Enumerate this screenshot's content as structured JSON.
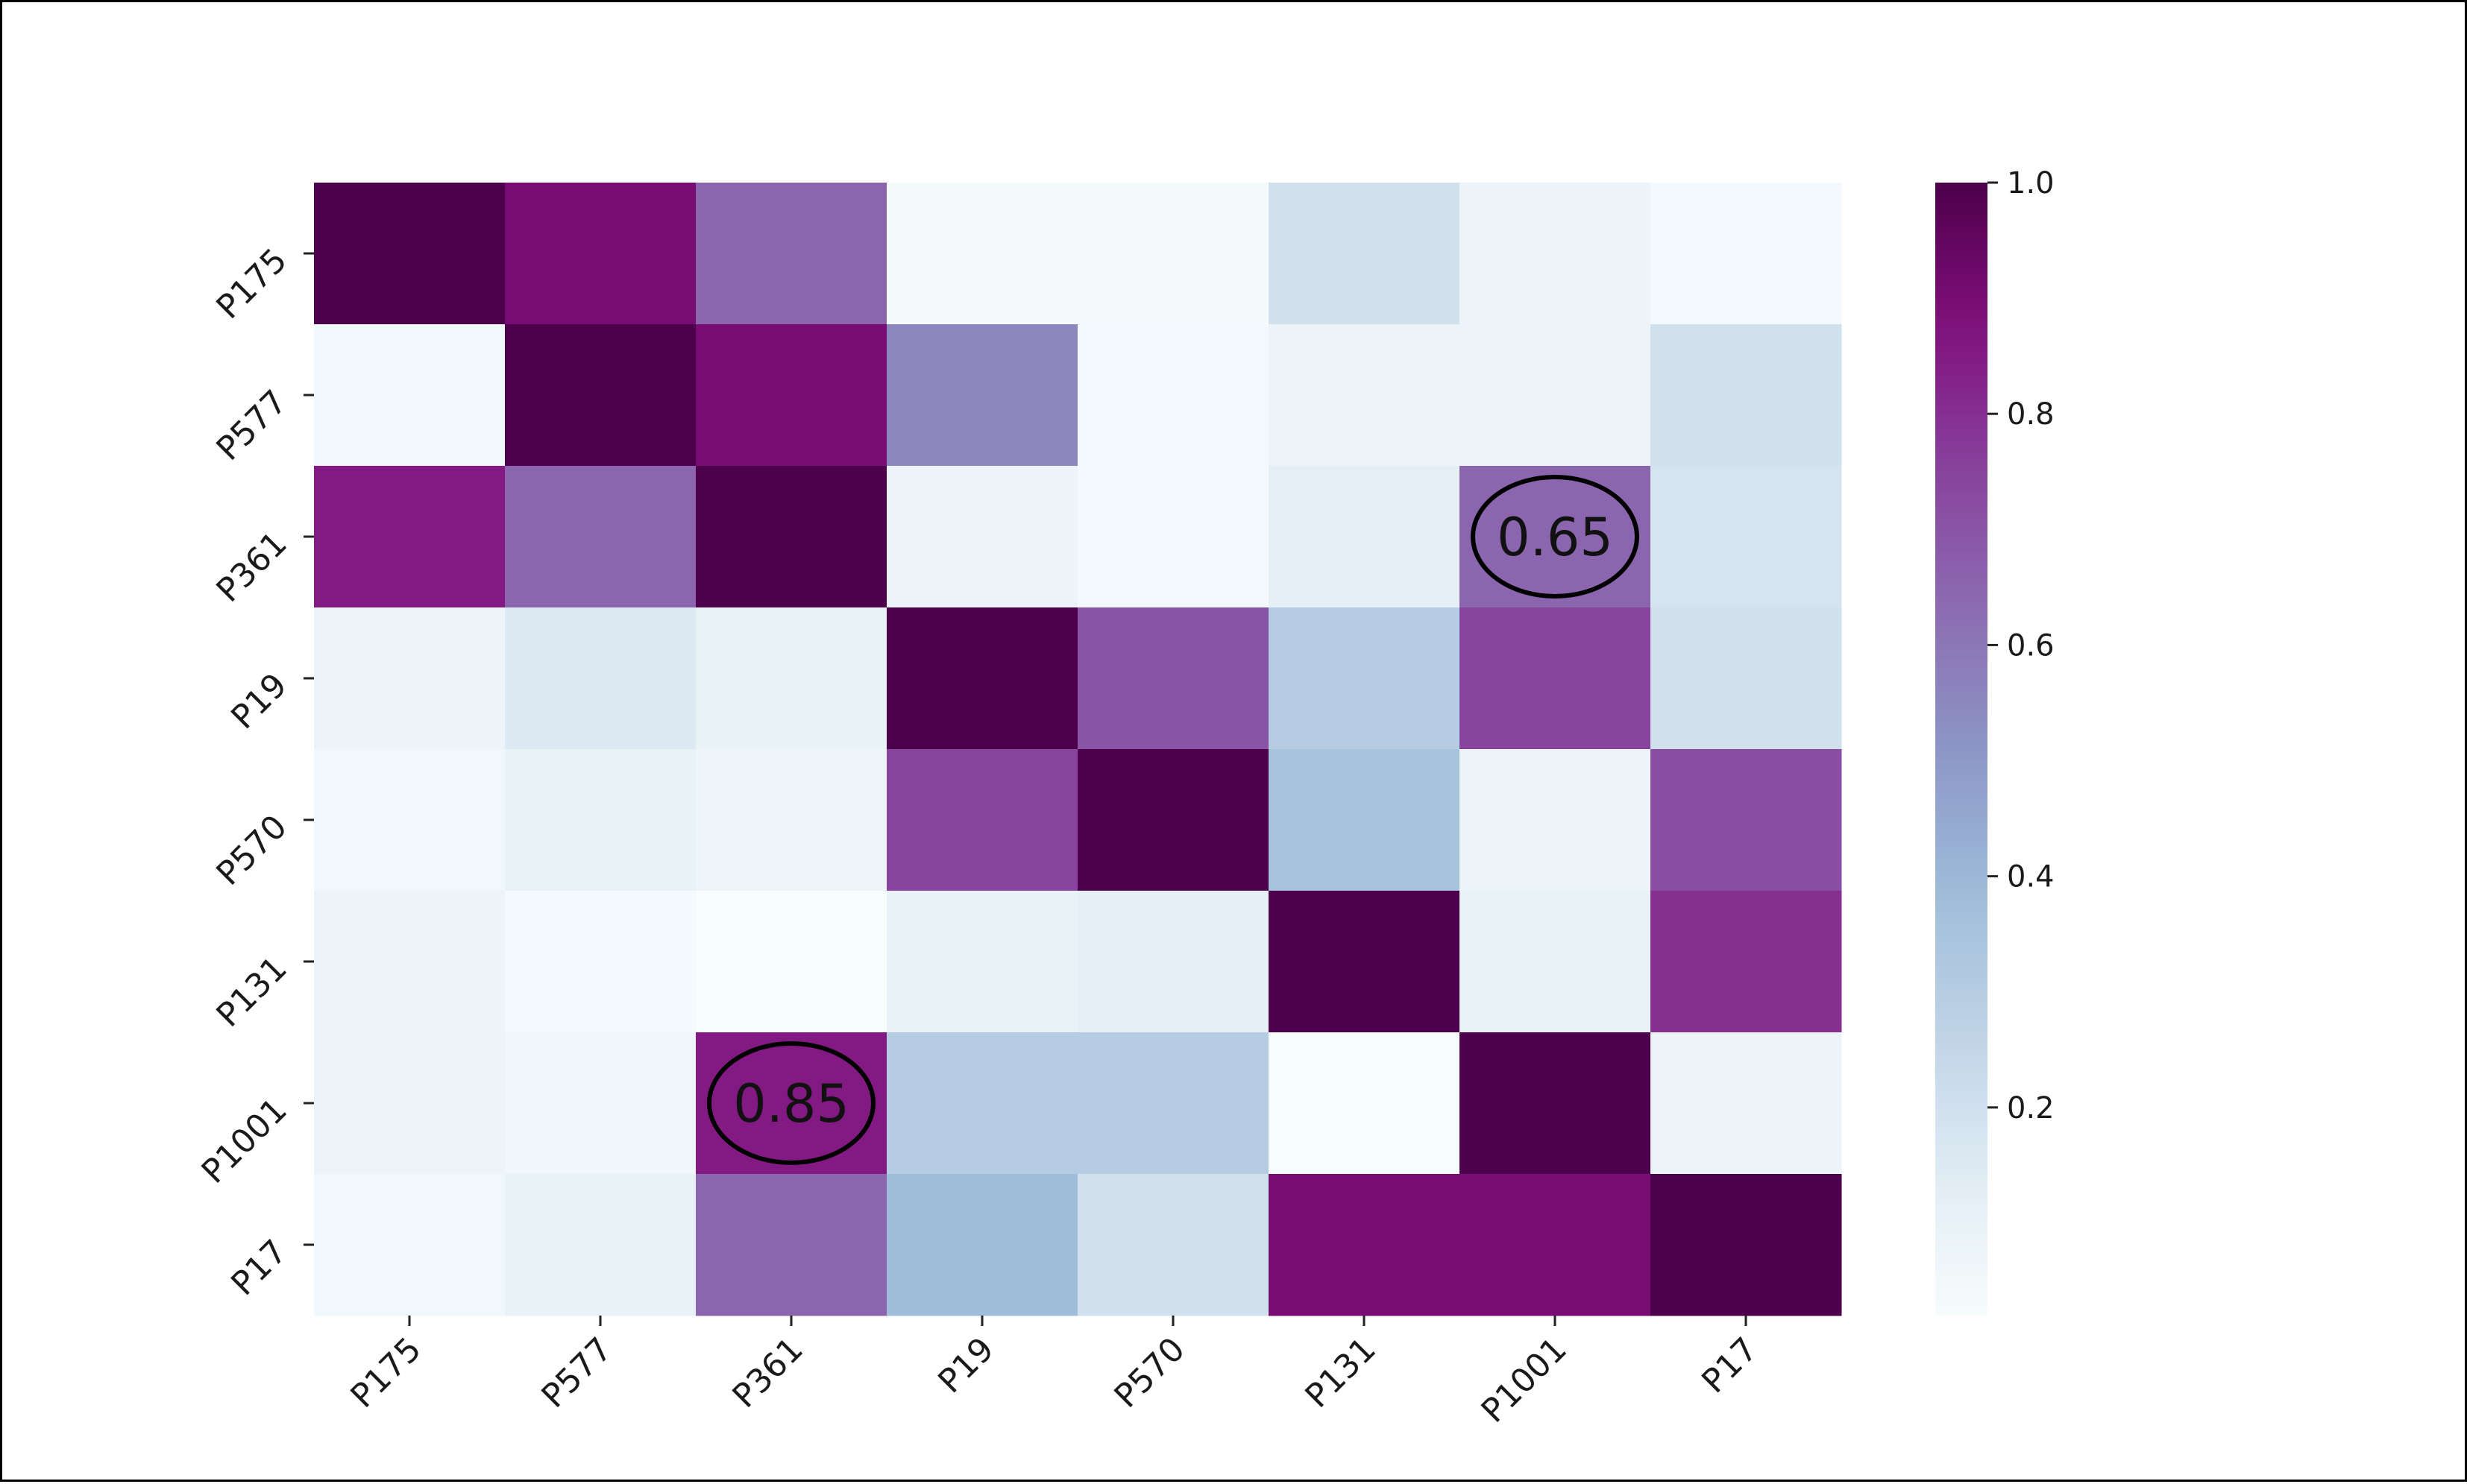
{
  "chart_data": {
    "type": "heatmap",
    "title": "",
    "xlabel": "",
    "ylabel": "",
    "x_categories": [
      "P175",
      "P577",
      "P361",
      "P19",
      "P570",
      "P131",
      "P1001",
      "P17"
    ],
    "y_categories": [
      "P175",
      "P577",
      "P361",
      "P19",
      "P570",
      "P131",
      "P1001",
      "P17"
    ],
    "values": [
      [
        1.0,
        0.9,
        0.65,
        0.03,
        0.03,
        0.2,
        0.08,
        0.04
      ],
      [
        0.05,
        1.0,
        0.9,
        0.55,
        0.04,
        0.08,
        0.08,
        0.2
      ],
      [
        0.85,
        0.65,
        1.0,
        0.08,
        0.04,
        0.12,
        0.65,
        0.18
      ],
      [
        0.08,
        0.15,
        0.1,
        1.0,
        0.7,
        0.3,
        0.75,
        0.2
      ],
      [
        0.05,
        0.1,
        0.07,
        0.75,
        1.0,
        0.35,
        0.08,
        0.72
      ],
      [
        0.08,
        0.04,
        0.02,
        0.1,
        0.12,
        1.0,
        0.1,
        0.8
      ],
      [
        0.08,
        0.06,
        0.85,
        0.3,
        0.3,
        0.02,
        1.0,
        0.08
      ],
      [
        0.05,
        0.1,
        0.65,
        0.38,
        0.2,
        0.9,
        0.9,
        1.0
      ]
    ],
    "colormap": "BuPu",
    "vmin": 0.02,
    "vmax": 1.0,
    "colorbar": {
      "ticks": [
        0.2,
        0.4,
        0.6,
        0.8,
        1.0
      ],
      "tick_labels": [
        "0.2",
        "0.4",
        "0.6",
        "0.8",
        "1.0"
      ],
      "placement": "right"
    },
    "annotations": [
      {
        "row": 2,
        "col": 6,
        "text": "0.65"
      },
      {
        "row": 6,
        "col": 2,
        "text": "0.85"
      }
    ]
  }
}
